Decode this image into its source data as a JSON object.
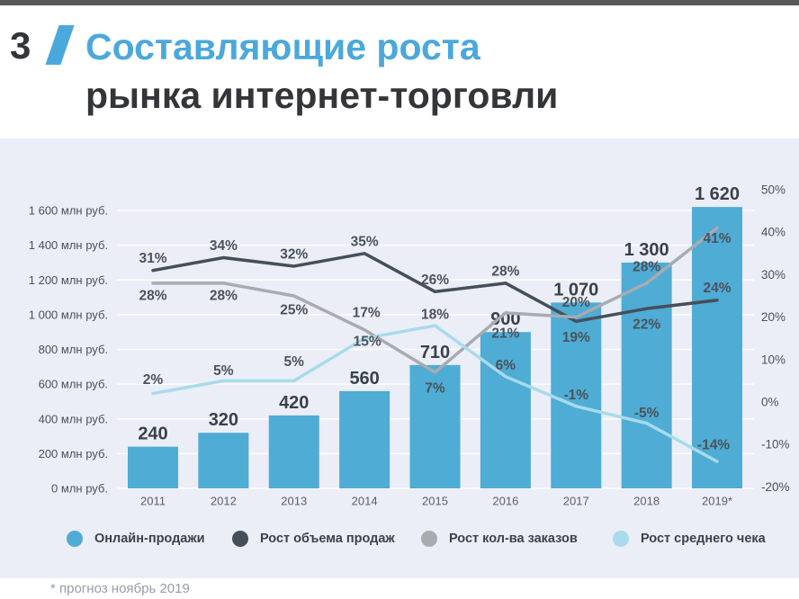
{
  "page": {
    "top_bar_color": "#58595b",
    "background": "#ffffff",
    "panel_background": "#EBEEF6",
    "accent_color": "#4BA8DB"
  },
  "header": {
    "slide_number": "3",
    "title_line1": "Составляющие роста",
    "title_line2": "рынка интернет-торговли"
  },
  "chart_data": {
    "type": "bar+line combo",
    "categories": [
      "2011",
      "2012",
      "2013",
      "2014",
      "2015",
      "2016",
      "2017",
      "2018",
      "2019*"
    ],
    "bar_series": {
      "id": "online-sales",
      "name": "Онлайн-продажи",
      "unit": "млн руб.",
      "color": "#4FACD5",
      "values": [
        240,
        320,
        420,
        560,
        710,
        900,
        1070,
        1300,
        1620
      ],
      "labels": [
        "240",
        "320",
        "420",
        "560",
        "710",
        "900",
        "1 070",
        "1 300",
        "1 620"
      ]
    },
    "line_series": [
      {
        "id": "sales-volume-growth",
        "name": "Рост объема продаж",
        "color": "#454F5A",
        "values": [
          31,
          34,
          32,
          35,
          26,
          28,
          19,
          22,
          24
        ]
      },
      {
        "id": "orders-count-growth",
        "name": "Рост кол-ва заказов",
        "color": "#A8ABB0",
        "values": [
          28,
          28,
          25,
          17,
          7,
          21,
          20,
          28,
          41
        ]
      },
      {
        "id": "avg-check-growth",
        "name": "Рост среднего чека",
        "color": "#A8DBEB",
        "values": [
          2,
          5,
          5,
          15,
          18,
          6,
          -1,
          -5,
          -14
        ]
      }
    ],
    "left_axis": {
      "min": 0,
      "max": 1600,
      "step": 200,
      "unit": "млн руб.",
      "tick_labels": [
        "0 млн руб.",
        "200 млн руб.",
        "400 млн руб.",
        "600 млн руб.",
        "800 млн руб.",
        "1 000 млн руб.",
        "1 200 млн руб.",
        "1 400 млн руб.",
        "1 600 млн руб."
      ]
    },
    "right_axis": {
      "min": -20,
      "max": 50,
      "step": 10,
      "tick_labels": [
        "-20%",
        "-10%",
        "0%",
        "10%",
        "20%",
        "30%",
        "40%",
        "50%"
      ]
    },
    "grid": true,
    "legend_position": "bottom",
    "label_colors": {
      "bar_value": "#39404A",
      "percent": "#4B525B",
      "axis": "#4b5158",
      "category": "#596069"
    }
  },
  "footnote": "* прогноз ноябрь 2019"
}
